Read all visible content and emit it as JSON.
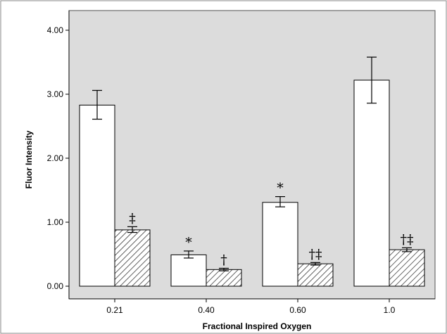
{
  "chart_data": {
    "type": "bar",
    "xlabel": "Fractional Inspired Oxygen",
    "ylabel": "Fluor Intensity",
    "ylim": [
      0,
      4
    ],
    "yticks": [
      "0.00",
      "1.00",
      "2.00",
      "3.00",
      "4.00"
    ],
    "ytick_values": [
      0,
      1,
      2,
      3,
      4
    ],
    "categories": [
      "0.21",
      "0.40",
      "0.60",
      "1.0"
    ],
    "grid": false,
    "plot_background": "#dcdcdc",
    "series": [
      {
        "fill": "white",
        "values": [
          2.83,
          0.49,
          1.31,
          3.22
        ],
        "error_low": [
          2.61,
          0.44,
          1.24,
          2.86
        ],
        "error_high": [
          3.06,
          0.55,
          1.4,
          3.58
        ],
        "annotations": [
          "",
          "*",
          "*",
          ""
        ]
      },
      {
        "fill": "hatched",
        "values": [
          0.88,
          0.26,
          0.35,
          0.57
        ],
        "error_low": [
          0.84,
          0.24,
          0.33,
          0.54
        ],
        "error_high": [
          0.93,
          0.28,
          0.37,
          0.6
        ],
        "annotations": [
          "‡",
          "†",
          "†‡",
          "†‡"
        ]
      }
    ]
  }
}
